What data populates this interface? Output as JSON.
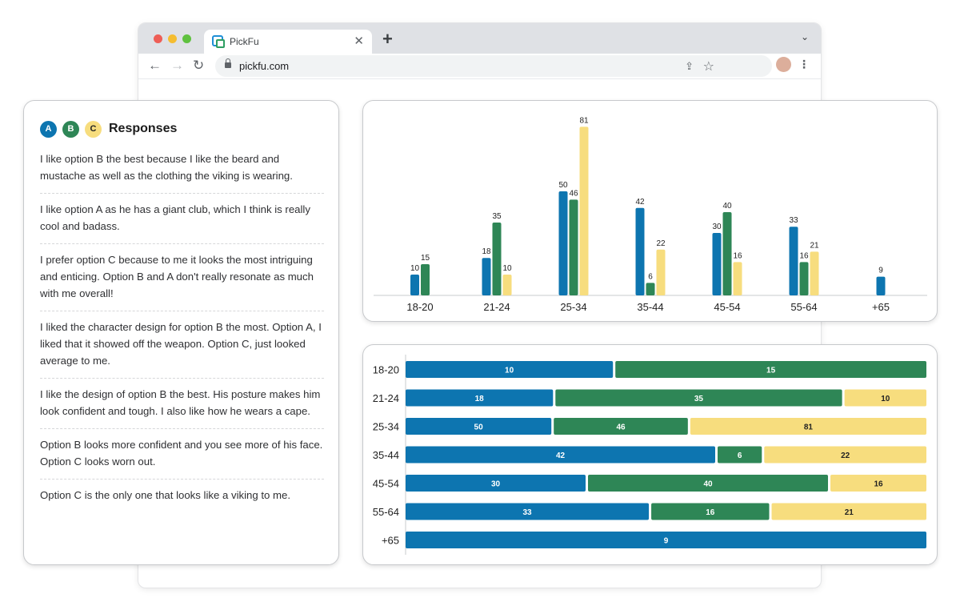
{
  "browser": {
    "tab_title": "PickFu",
    "tab_close": "✕",
    "new_tab": "+",
    "tabs_menu": "⌄",
    "url": "pickfu.com",
    "back": "←",
    "forward": "→",
    "reload": "↻",
    "share": "⇪",
    "bookmark": "☆",
    "menu": "⋮"
  },
  "responses": {
    "badges": [
      "A",
      "B",
      "C"
    ],
    "title": "Responses",
    "items": [
      "I like option B the best because I like the beard and mustache as well as the clothing the viking is wearing.",
      "I like option A as he has a giant club, which I think is really cool and badass.",
      "I prefer option C because to me it looks the most intriguing and enticing. Option B and A don't really resonate as much with me overall!",
      "I liked the character design for option B the most. Option A, I liked that it showed off the weapon. Option C, just looked average to me.",
      "I like the design of option B the best. His posture makes him look confident and tough. I also like how he wears a cape.",
      "Option B looks more confident and you see more of his face. Option C looks worn out.",
      "Option C is the only one that looks like a viking to me."
    ]
  },
  "colors": {
    "A": "#0d75b0",
    "B": "#2e8656",
    "C": "#f7dd7e"
  },
  "chart_data": [
    {
      "type": "bar",
      "categories": [
        "18-20",
        "21-24",
        "25-34",
        "35-44",
        "45-54",
        "55-64",
        "+65"
      ],
      "series": [
        {
          "values": [
            10,
            18,
            50,
            42,
            30,
            33,
            9
          ]
        },
        {
          "values": [
            15,
            35,
            46,
            6,
            40,
            16,
            null
          ]
        },
        {
          "values": [
            null,
            10,
            81,
            22,
            16,
            21,
            null
          ]
        }
      ],
      "grid": false
    },
    {
      "type": "bar",
      "orientation": "horizontal-stacked",
      "categories": [
        "18-20",
        "21-24",
        "25-34",
        "35-44",
        "45-54",
        "55-64",
        "+65"
      ],
      "series": [
        {
          "values": [
            10,
            18,
            50,
            42,
            30,
            33,
            9
          ]
        },
        {
          "values": [
            15,
            35,
            46,
            6,
            40,
            16,
            null
          ]
        },
        {
          "values": [
            null,
            10,
            81,
            22,
            16,
            21,
            null
          ]
        }
      ],
      "grid": false
    }
  ]
}
